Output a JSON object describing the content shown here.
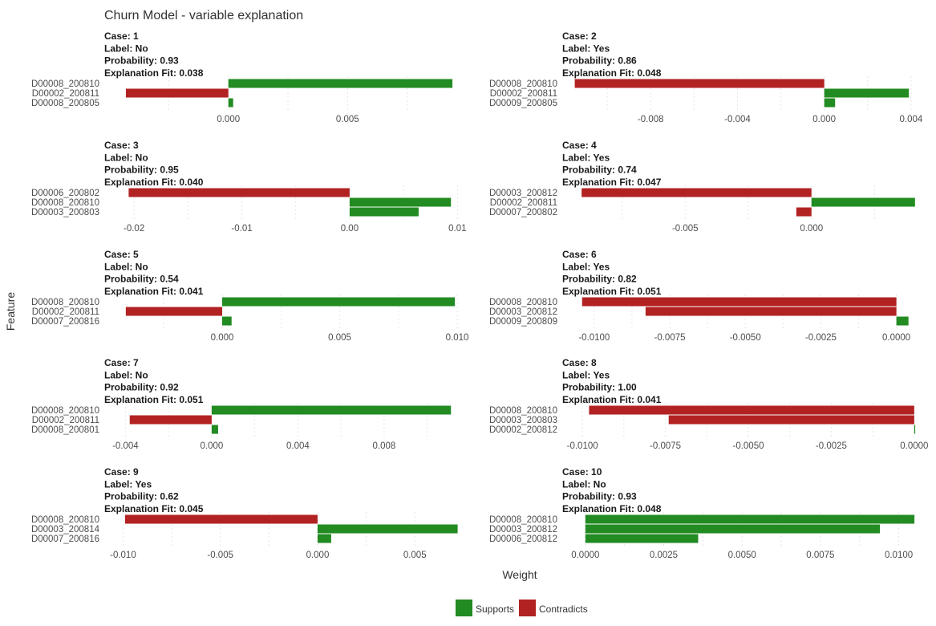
{
  "chart_data": {
    "type": "bar",
    "orientation": "horizontal",
    "title": "Churn Model - variable explanation",
    "xlabel": "Weight",
    "ylabel": "Feature",
    "legend": {
      "position": "bottom",
      "entries": [
        {
          "name": "Supports",
          "color": "#228b22"
        },
        {
          "name": "Contradicts",
          "color": "#b22222"
        }
      ]
    },
    "grid": true,
    "panels": [
      {
        "case": "Case: 1",
        "label": "Label: No",
        "probability": "Probability: 0.93",
        "fit": "Explanation Fit: 0.038",
        "xlim": [
          -0.0045,
          0.0097
        ],
        "ticks": [
          0.0,
          0.005
        ],
        "tick_labels": [
          "0.000",
          "0.005"
        ],
        "bars": [
          {
            "feature": "D00008_200810",
            "value": 0.0094,
            "kind": "Supports"
          },
          {
            "feature": "D00002_200811",
            "value": -0.0043,
            "kind": "Contradicts"
          },
          {
            "feature": "D00008_200805",
            "value": 0.0002,
            "kind": "Supports"
          }
        ]
      },
      {
        "case": "Case: 2",
        "label": "Label: Yes",
        "probability": "Probability: 0.86",
        "fit": "Explanation Fit: 0.048",
        "xlim": [
          -0.0113,
          0.0043
        ],
        "ticks": [
          -0.008,
          -0.004,
          0.0,
          0.004
        ],
        "tick_labels": [
          "-0.008",
          "-0.004",
          "0.000",
          "0.004"
        ],
        "bars": [
          {
            "feature": "D00008_200810",
            "value": -0.0115,
            "kind": "Contradicts"
          },
          {
            "feature": "D00002_200811",
            "value": 0.0039,
            "kind": "Supports"
          },
          {
            "feature": "D00009_200805",
            "value": 0.0005,
            "kind": "Supports"
          }
        ]
      },
      {
        "case": "Case: 3",
        "label": "Label: No",
        "probability": "Probability: 0.95",
        "fit": "Explanation Fit: 0.040",
        "xlim": [
          -0.0212,
          0.0102
        ],
        "ticks": [
          -0.02,
          -0.01,
          0.0,
          0.01
        ],
        "tick_labels": [
          "-0.02",
          "-0.01",
          "0.00",
          "0.01"
        ],
        "bars": [
          {
            "feature": "D00006_200802",
            "value": -0.0205,
            "kind": "Contradicts"
          },
          {
            "feature": "D00008_200810",
            "value": 0.0094,
            "kind": "Supports"
          },
          {
            "feature": "D00003_200803",
            "value": 0.0064,
            "kind": "Supports"
          }
        ]
      },
      {
        "case": "Case: 4",
        "label": "Label: Yes",
        "probability": "Probability: 0.74",
        "fit": "Explanation Fit: 0.047",
        "xlim": [
          -0.0092,
          0.0042
        ],
        "ticks": [
          -0.005,
          0.0
        ],
        "tick_labels": [
          "-0.005",
          "0.000"
        ],
        "bars": [
          {
            "feature": "D00003_200812",
            "value": -0.0091,
            "kind": "Contradicts"
          },
          {
            "feature": "D00002_200811",
            "value": 0.0041,
            "kind": "Supports"
          },
          {
            "feature": "D00007_200802",
            "value": -0.0006,
            "kind": "Contradicts"
          }
        ]
      },
      {
        "case": "Case: 5",
        "label": "Label: No",
        "probability": "Probability: 0.54",
        "fit": "Explanation Fit: 0.041",
        "xlim": [
          -0.0043,
          0.0101
        ],
        "ticks": [
          0.0,
          0.005,
          0.01
        ],
        "tick_labels": [
          "0.000",
          "0.005",
          "0.010"
        ],
        "bars": [
          {
            "feature": "D00008_200810",
            "value": 0.0099,
            "kind": "Supports"
          },
          {
            "feature": "D00002_200811",
            "value": -0.0041,
            "kind": "Contradicts"
          },
          {
            "feature": "D00007_200816",
            "value": 0.0004,
            "kind": "Supports"
          }
        ]
      },
      {
        "case": "Case: 6",
        "label": "Label: Yes",
        "probability": "Probability: 0.82",
        "fit": "Explanation Fit: 0.051",
        "xlim": [
          -0.0105,
          0.0007
        ],
        "ticks": [
          -0.01,
          -0.0075,
          -0.005,
          -0.0025,
          0.0
        ],
        "tick_labels": [
          "-0.0100",
          "-0.0075",
          "-0.0050",
          "-0.0025",
          "0.0000"
        ],
        "bars": [
          {
            "feature": "D00008_200810",
            "value": -0.0104,
            "kind": "Contradicts"
          },
          {
            "feature": "D00003_200812",
            "value": -0.0083,
            "kind": "Contradicts"
          },
          {
            "feature": "D00009_200809",
            "value": 0.0004,
            "kind": "Supports"
          }
        ]
      },
      {
        "case": "Case: 7",
        "label": "Label: No",
        "probability": "Probability: 0.92",
        "fit": "Explanation Fit: 0.051",
        "xlim": [
          -0.0042,
          0.0115
        ],
        "ticks": [
          -0.004,
          0.0,
          0.004,
          0.008
        ],
        "tick_labels": [
          "-0.004",
          "0.000",
          "0.004",
          "0.008"
        ],
        "bars": [
          {
            "feature": "D00008_200810",
            "value": 0.0111,
            "kind": "Supports"
          },
          {
            "feature": "D00002_200811",
            "value": -0.0038,
            "kind": "Contradicts"
          },
          {
            "feature": "D00008_200801",
            "value": 0.0003,
            "kind": "Supports"
          }
        ]
      },
      {
        "case": "Case: 8",
        "label": "Label: Yes",
        "probability": "Probability: 1.00",
        "fit": "Explanation Fit: 0.041",
        "xlim": [
          -0.0101,
          0.0001
        ],
        "ticks": [
          -0.01,
          -0.0075,
          -0.005,
          -0.0025,
          0.0
        ],
        "tick_labels": [
          "-0.0100",
          "-0.0075",
          "-0.0050",
          "-0.0025",
          "0.0000"
        ],
        "bars": [
          {
            "feature": "D00008_200810",
            "value": -0.0098,
            "kind": "Contradicts"
          },
          {
            "feature": "D00003_200803",
            "value": -0.0074,
            "kind": "Contradicts"
          },
          {
            "feature": "D00002_200812",
            "value": 3e-05,
            "kind": "Supports"
          }
        ]
      },
      {
        "case": "Case: 9",
        "label": "Label: Yes",
        "probability": "Probability: 0.62",
        "fit": "Explanation Fit: 0.045",
        "xlim": [
          -0.0101,
          0.0073
        ],
        "ticks": [
          -0.01,
          -0.005,
          0.0,
          0.005
        ],
        "tick_labels": [
          "-0.010",
          "-0.005",
          "0.000",
          "0.005"
        ],
        "bars": [
          {
            "feature": "D00008_200810",
            "value": -0.0099,
            "kind": "Contradicts"
          },
          {
            "feature": "D00003_200814",
            "value": 0.0072,
            "kind": "Supports"
          },
          {
            "feature": "D00007_200816",
            "value": 0.0007,
            "kind": "Supports"
          }
        ]
      },
      {
        "case": "Case: 10",
        "label": "Label: No",
        "probability": "Probability: 0.93",
        "fit": "Explanation Fit: 0.048",
        "xlim": [
          -0.0002,
          0.0106
        ],
        "ticks": [
          0.0,
          0.0025,
          0.005,
          0.0075,
          0.01
        ],
        "tick_labels": [
          "0.0000",
          "0.0025",
          "0.0050",
          "0.0075",
          "0.0100"
        ],
        "bars": [
          {
            "feature": "D00008_200810",
            "value": 0.0105,
            "kind": "Supports"
          },
          {
            "feature": "D00003_200812",
            "value": 0.0094,
            "kind": "Supports"
          },
          {
            "feature": "D00006_200812",
            "value": 0.0036,
            "kind": "Supports"
          }
        ]
      }
    ]
  }
}
